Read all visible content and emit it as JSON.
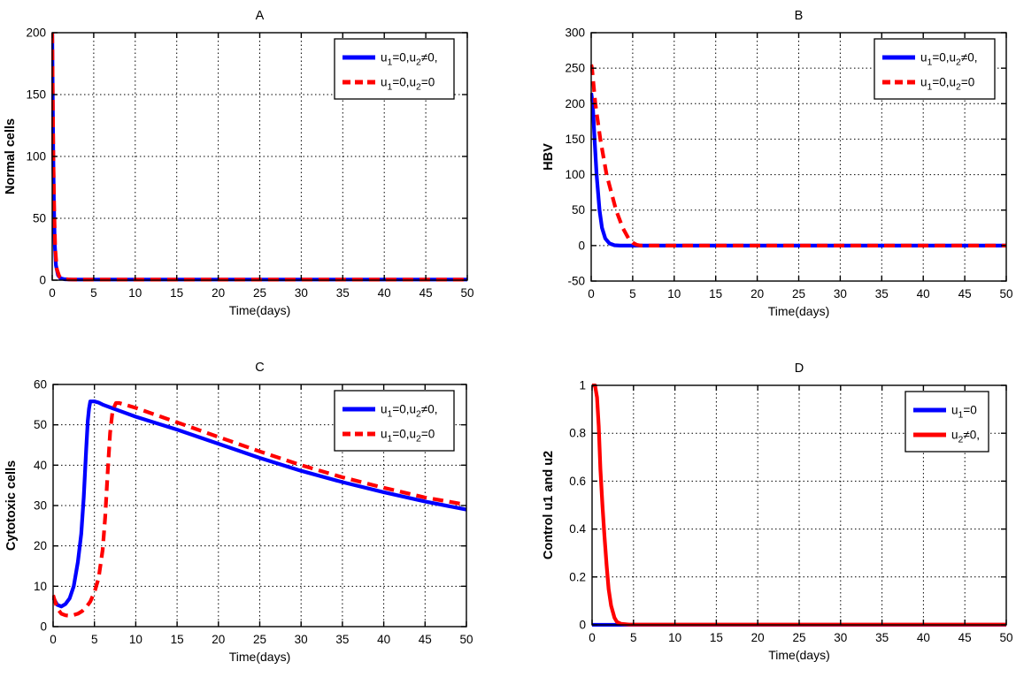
{
  "figure": {
    "background": "#ffffff",
    "grid_color": "#000000",
    "axis_color": "#000000",
    "series_blue": "#0000ff",
    "series_red": "#ff0000"
  },
  "chart_data": [
    {
      "id": "A",
      "type": "line",
      "title": "A",
      "xlabel": "Time(days)",
      "ylabel": "Normal cells",
      "xlim": [
        0,
        50
      ],
      "ylim": [
        0,
        200
      ],
      "xticks": [
        0,
        5,
        10,
        15,
        20,
        25,
        30,
        35,
        40,
        45,
        50
      ],
      "yticks": [
        0,
        50,
        100,
        150,
        200
      ],
      "grid": true,
      "legend_position": "top-right",
      "series": [
        {
          "name": "u_1=0,u_2≠0,",
          "color": "#0000ff",
          "style": "solid",
          "x": [
            0,
            0.05,
            0.12,
            0.2,
            0.3,
            0.45,
            0.7,
            1,
            1.5,
            2.5,
            50
          ],
          "y": [
            200,
            155,
            105,
            62,
            30,
            12,
            4,
            1.5,
            0.7,
            0.5,
            0.5
          ]
        },
        {
          "name": "u_1=0,u_2=0",
          "color": "#ff0000",
          "style": "dashed",
          "x": [
            0,
            0.06,
            0.14,
            0.24,
            0.36,
            0.55,
            0.85,
            1.3,
            2,
            3,
            50
          ],
          "y": [
            200,
            150,
            98,
            55,
            25,
            9,
            3,
            1.2,
            0.6,
            0.4,
            0.4
          ]
        }
      ]
    },
    {
      "id": "B",
      "type": "line",
      "title": "B",
      "xlabel": "Time(days)",
      "ylabel": "HBV",
      "xlim": [
        0,
        50
      ],
      "ylim": [
        -50,
        300
      ],
      "xticks": [
        0,
        5,
        10,
        15,
        20,
        25,
        30,
        35,
        40,
        45,
        50
      ],
      "yticks": [
        -50,
        0,
        50,
        100,
        150,
        200,
        250,
        300
      ],
      "grid": true,
      "legend_position": "top-right",
      "series": [
        {
          "name": "u_1=0,u_2≠0,",
          "color": "#0000ff",
          "style": "solid",
          "x": [
            0,
            0.18,
            0.4,
            0.65,
            1,
            1.3,
            1.7,
            2.2,
            2.8,
            3.5,
            50
          ],
          "y": [
            215,
            200,
            150,
            100,
            50,
            25,
            10,
            3,
            0.5,
            0,
            0
          ]
        },
        {
          "name": "u_1=0,u_2=0",
          "color": "#ff0000",
          "style": "dashed",
          "x": [
            0,
            0.1,
            0.5,
            1.1,
            1.85,
            3,
            3.8,
            4.5,
            5,
            5.5,
            6,
            50
          ],
          "y": [
            255,
            250,
            200,
            150,
            100,
            50,
            25,
            10,
            4,
            1,
            0,
            0
          ]
        }
      ]
    },
    {
      "id": "C",
      "type": "line",
      "title": "C",
      "xlabel": "Time(days)",
      "ylabel": "Cytotoxic cells",
      "xlim": [
        0,
        50
      ],
      "ylim": [
        0,
        60
      ],
      "xticks": [
        0,
        5,
        10,
        15,
        20,
        25,
        30,
        35,
        40,
        45,
        50
      ],
      "yticks": [
        0,
        10,
        20,
        30,
        40,
        50,
        60
      ],
      "grid": true,
      "legend_position": "top-right",
      "series": [
        {
          "name": "u_1=0,u_2≠0,",
          "color": "#0000ff",
          "style": "solid",
          "x": [
            0,
            0.5,
            1,
            1.5,
            2,
            2.5,
            3,
            3.4,
            3.7,
            4,
            4.2,
            4.35,
            4.5,
            5,
            5.5,
            6,
            8,
            10,
            15,
            20,
            25,
            30,
            35,
            40,
            45,
            50
          ],
          "y": [
            7.2,
            5.4,
            5,
            5.6,
            7,
            10,
            16,
            23,
            32,
            44,
            51,
            54,
            55.8,
            55.8,
            55.5,
            55,
            53.5,
            52,
            48.8,
            45.3,
            41.8,
            38.6,
            35.8,
            33.3,
            31,
            29
          ]
        },
        {
          "name": "u_1=0,u_2=0",
          "color": "#ff0000",
          "style": "dashed",
          "x": [
            0,
            0.5,
            1,
            1.5,
            2,
            2.5,
            3,
            3.5,
            4,
            4.5,
            5,
            5.5,
            6,
            6.3,
            6.6,
            6.9,
            7.2,
            7.6,
            8,
            9,
            10,
            15,
            20,
            25,
            30,
            35,
            40,
            45,
            50
          ],
          "y": [
            7.8,
            4.5,
            3.2,
            2.8,
            2.7,
            2.9,
            3.2,
            3.8,
            4.8,
            6.2,
            8.5,
            12,
            19,
            27,
            38,
            48,
            53.5,
            55.4,
            55.4,
            54.8,
            54.2,
            50.6,
            47,
            43.4,
            40,
            37,
            34.4,
            32,
            30.2
          ]
        }
      ]
    },
    {
      "id": "D",
      "type": "line",
      "title": "D",
      "xlabel": "Time(days)",
      "ylabel": "Control u1 and u2",
      "xlim": [
        0,
        50
      ],
      "ylim": [
        0,
        1
      ],
      "xticks": [
        0,
        5,
        10,
        15,
        20,
        25,
        30,
        35,
        40,
        45,
        50
      ],
      "yticks": [
        0,
        0.2,
        0.4,
        0.6,
        0.8,
        1
      ],
      "grid": true,
      "legend_position": "top-right",
      "series": [
        {
          "name": "u_1=0",
          "color": "#0000ff",
          "style": "solid",
          "x": [
            0,
            50
          ],
          "y": [
            0,
            0
          ]
        },
        {
          "name": "u_2≠0,",
          "color": "#ff0000",
          "style": "solid",
          "x": [
            0,
            0.35,
            0.6,
            0.8,
            1,
            1.25,
            1.5,
            1.75,
            2,
            2.3,
            2.7,
            3,
            3.5,
            4.5,
            50
          ],
          "y": [
            1,
            1,
            0.95,
            0.83,
            0.65,
            0.5,
            0.37,
            0.25,
            0.15,
            0.08,
            0.03,
            0.012,
            0.004,
            0.001,
            0.001
          ]
        }
      ]
    }
  ]
}
